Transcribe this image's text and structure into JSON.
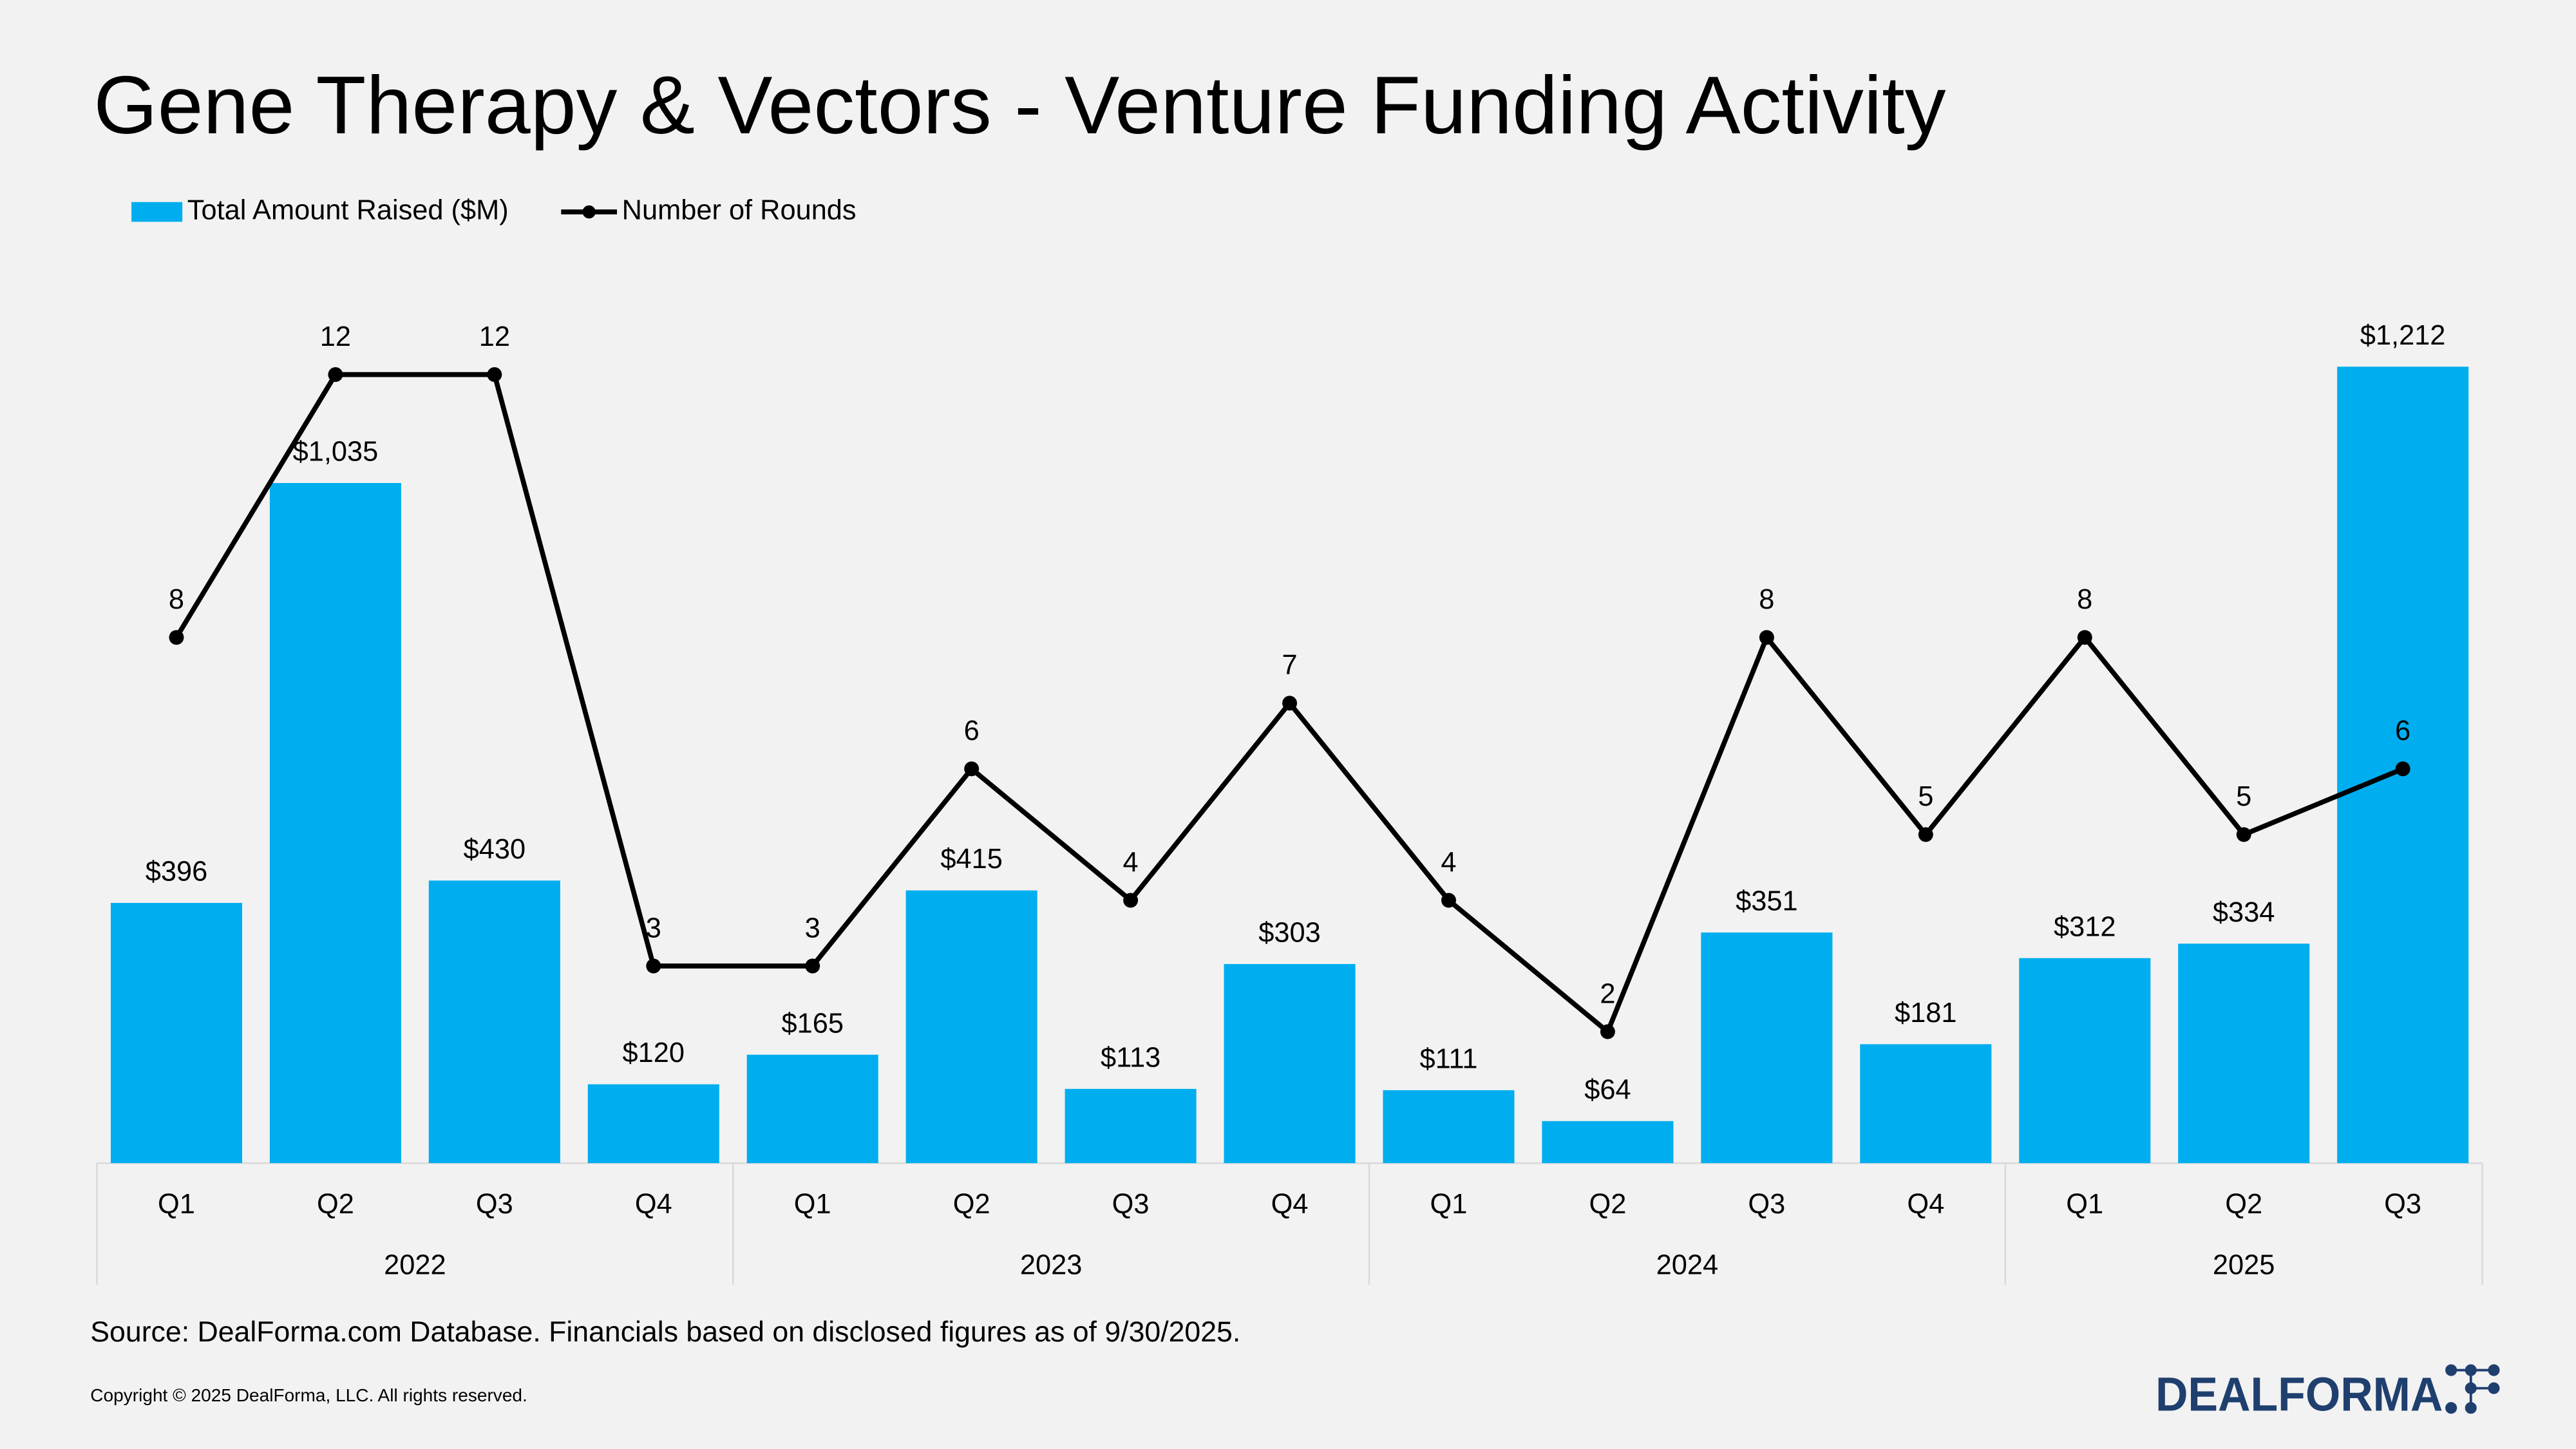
{
  "chart_data": {
    "type": "bar-line",
    "title": "Gene Therapy & Vectors - Venture Funding Activity",
    "category_groups": [
      {
        "label": "2022",
        "categories": [
          "Q1",
          "Q2",
          "Q3",
          "Q4"
        ]
      },
      {
        "label": "2023",
        "categories": [
          "Q1",
          "Q2",
          "Q3",
          "Q4"
        ]
      },
      {
        "label": "2024",
        "categories": [
          "Q1",
          "Q2",
          "Q3",
          "Q4"
        ]
      },
      {
        "label": "2025",
        "categories": [
          "Q1",
          "Q2",
          "Q3"
        ]
      }
    ],
    "series": [
      {
        "name": "Total Amount Raised ($M)",
        "type": "bar",
        "color": "#00aeef",
        "values": [
          396,
          1035,
          430,
          120,
          165,
          415,
          113,
          303,
          111,
          64,
          351,
          181,
          312,
          334,
          1212
        ],
        "value_labels": [
          "$396",
          "$1,035",
          "$430",
          "$120",
          "$165",
          "$415",
          "$113",
          "$303",
          "$111",
          "$64",
          "$351",
          "$181",
          "$312",
          "$334",
          "$1,212"
        ]
      },
      {
        "name": "Number of Rounds",
        "type": "line",
        "axis": "y2",
        "color": "#000000",
        "values": [
          8,
          12,
          12,
          3,
          3,
          6,
          4,
          7,
          4,
          2,
          8,
          5,
          8,
          5,
          6
        ]
      }
    ],
    "ylim": [
      0,
      1400
    ],
    "y2lim": [
      0,
      14
    ],
    "legend": "top-left",
    "source": "Source: DealForma.com Database. Financials based on disclosed figures as of 9/30/2025.",
    "copyright": "Copyright © 2025 DealForma, LLC. All rights reserved.",
    "logo": "DEALFORMA"
  }
}
